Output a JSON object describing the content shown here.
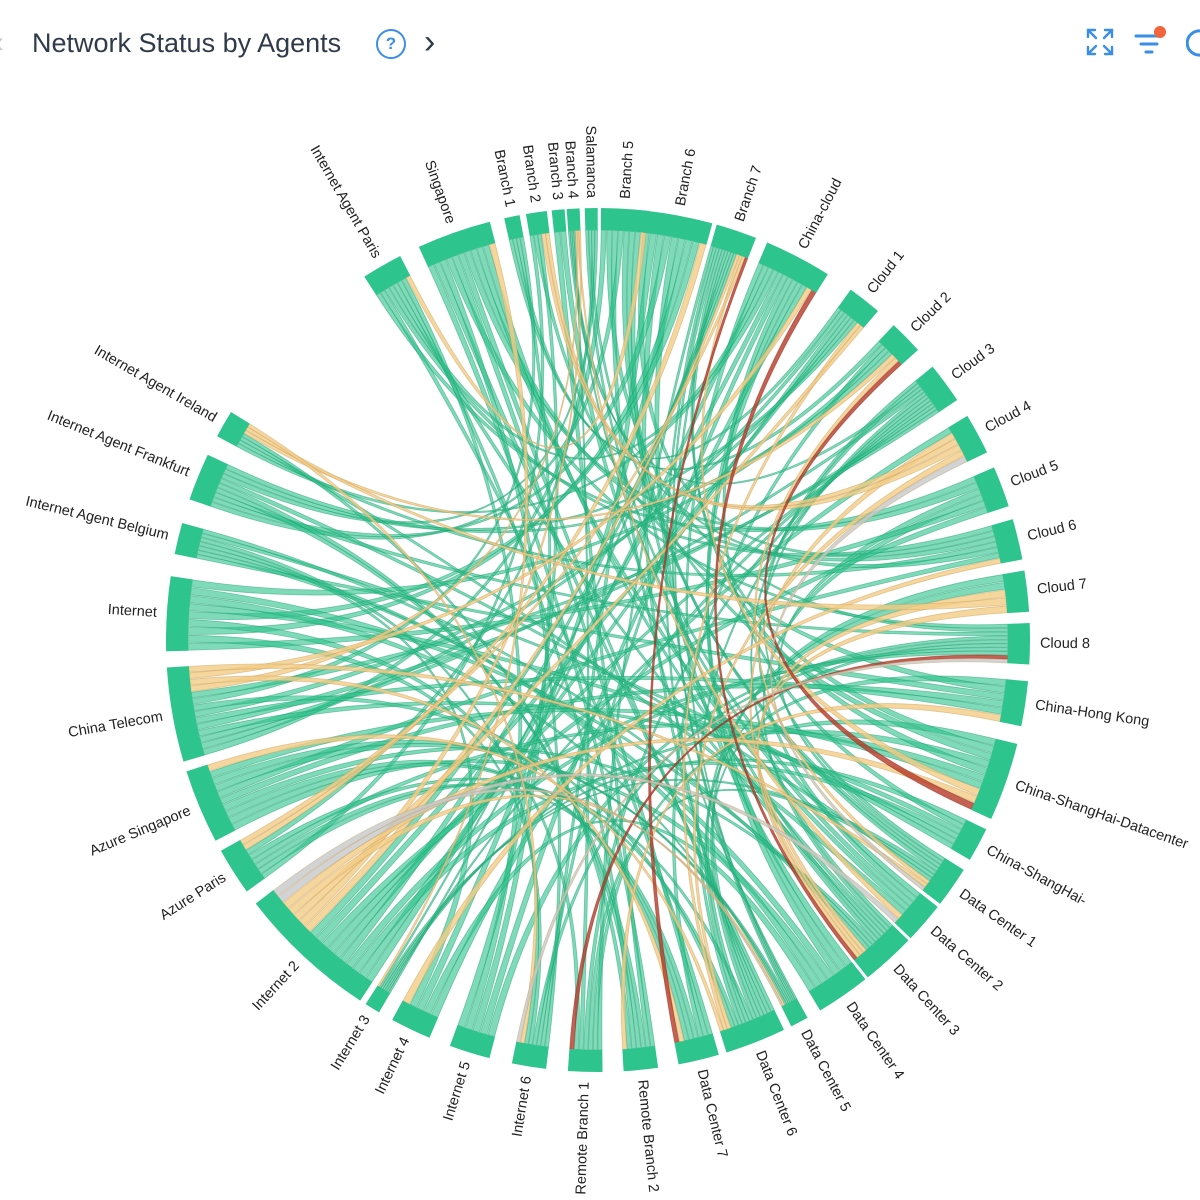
{
  "header": {
    "title": "Network Status by Agents",
    "help_icon": "help-circle-icon",
    "next_icon": "chevron-right-icon",
    "toolbar": [
      {
        "name": "expand-icon"
      },
      {
        "name": "filter-icon",
        "has_badge": true
      },
      {
        "name": "refresh-icon"
      }
    ]
  },
  "colors": {
    "ok": "#2ec48e",
    "warning": "#f2cc84",
    "critical": "#b73a28",
    "unknown": "#c6c9cc"
  },
  "chart_data": {
    "type": "chord",
    "nodes": [
      {
        "name": "Internet Agent Paris",
        "angle": -30,
        "weight": 2.5
      },
      {
        "name": "Singapore",
        "angle": -19.5,
        "weight": 5
      },
      {
        "name": "Branch 1",
        "angle": -11.5,
        "weight": 0.6
      },
      {
        "name": "Branch 2",
        "angle": -8.2,
        "weight": 1
      },
      {
        "name": "Branch 3",
        "angle": -5.3,
        "weight": 0.4
      },
      {
        "name": "Branch 4",
        "angle": -3.3,
        "weight": 0.4
      },
      {
        "name": "Salamanca",
        "angle": -0.9,
        "weight": 0.4
      },
      {
        "name": "Branch 5",
        "angle": 3.6,
        "weight": 3
      },
      {
        "name": "Branch 6",
        "angle": 10.8,
        "weight": 4.5
      },
      {
        "name": "Branch 7",
        "angle": 18.7,
        "weight": 2.5
      },
      {
        "name": "China-cloud",
        "angle": 27.6,
        "weight": 4.5
      },
      {
        "name": "Cloud 1",
        "angle": 38.1,
        "weight": 2
      },
      {
        "name": "Cloud 2",
        "angle": 45.5,
        "weight": 2
      },
      {
        "name": "Cloud 3",
        "angle": 53.5,
        "weight": 2.5
      },
      {
        "name": "Cloud 4",
        "angle": 61.5,
        "weight": 2.5
      },
      {
        "name": "Cloud 5",
        "angle": 69.2,
        "weight": 2.5
      },
      {
        "name": "Cloud 6",
        "angle": 76.5,
        "weight": 2.5
      },
      {
        "name": "Cloud 7",
        "angle": 83.5,
        "weight": 2.5
      },
      {
        "name": "Cloud 8",
        "angle": 90.5,
        "weight": 2.5
      },
      {
        "name": "China-Hong Kong",
        "angle": 98.5,
        "weight": 2.8
      },
      {
        "name": "China-ShangHai-Datacenter",
        "angle": 109.2,
        "weight": 5.3
      },
      {
        "name": "China-ShangHai-",
        "angle": 118.3,
        "weight": 2
      },
      {
        "name": "Data Center 1",
        "angle": 124.9,
        "weight": 2.5
      },
      {
        "name": "Data Center 2",
        "angle": 130.9,
        "weight": 2.5
      },
      {
        "name": "Data Center 3",
        "angle": 137.7,
        "weight": 3.5
      },
      {
        "name": "Data Center 4",
        "angle": 145.4,
        "weight": 3.5
      },
      {
        "name": "Data Center 5",
        "angle": 152.2,
        "weight": 0.8
      },
      {
        "name": "Data Center 6",
        "angle": 158.6,
        "weight": 4
      },
      {
        "name": "Data Center 7",
        "angle": 166.5,
        "weight": 2.5
      },
      {
        "name": "Remote Branch 2",
        "angle": 174.3,
        "weight": 2
      },
      {
        "name": "Remote Branch 1",
        "angle": 181.7,
        "weight": 2
      },
      {
        "name": "Internet 6",
        "angle": 189.2,
        "weight": 2
      },
      {
        "name": "Internet 5",
        "angle": 197.3,
        "weight": 2.5
      },
      {
        "name": "Internet 4",
        "angle": 205.7,
        "weight": 2.5
      },
      {
        "name": "Internet 3",
        "angle": 211.5,
        "weight": 0.6
      },
      {
        "name": "Internet 2",
        "angle": 222.9,
        "weight": 10
      },
      {
        "name": "Azure Paris",
        "angle": 237.6,
        "weight": 3
      },
      {
        "name": "Azure Singapore",
        "angle": 247.3,
        "weight": 5
      },
      {
        "name": "China Telecom",
        "angle": 260,
        "weight": 6.5
      },
      {
        "name": "Internet",
        "angle": 273.5,
        "weight": 5
      },
      {
        "name": "Internet Agent Belgium",
        "angle": 283.6,
        "weight": 1.8
      },
      {
        "name": "Internet Agent Frankfurt",
        "angle": 292.2,
        "weight": 3
      },
      {
        "name": "Internet Agent Ireland",
        "angle": 300,
        "weight": 1.5
      }
    ],
    "status_colors": [
      "#2ec48e",
      "#f2cc84",
      "#b73a28",
      "#c6c9cc"
    ]
  }
}
